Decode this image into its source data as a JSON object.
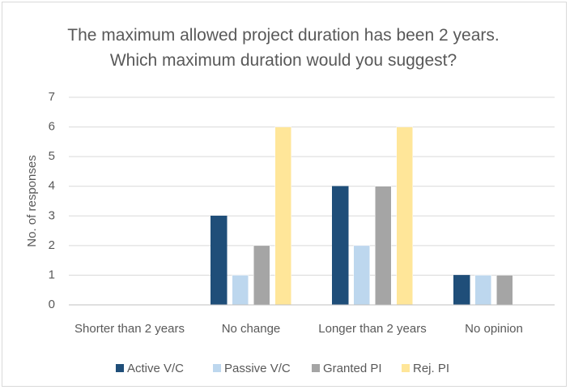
{
  "chart_data": {
    "type": "bar",
    "title": "The maximum allowed project duration has been 2 years. Which maximum duration would you suggest?",
    "ylabel": "No. of responses",
    "categories": [
      "Shorter than 2 years",
      "No change",
      "Longer than 2 years",
      "No opinion"
    ],
    "series": [
      {
        "name": "Active V/C",
        "color": "#1f4e79",
        "values": [
          0,
          3,
          4,
          1
        ]
      },
      {
        "name": "Passive V/C",
        "color": "#bdd7ee",
        "values": [
          0,
          1,
          2,
          1
        ]
      },
      {
        "name": "Granted PI",
        "color": "#a5a5a5",
        "values": [
          0,
          2,
          4,
          1
        ]
      },
      {
        "name": "Rej. PI",
        "color": "#ffe699",
        "values": [
          0,
          6,
          6,
          0
        ]
      }
    ],
    "ylim": [
      0,
      7
    ],
    "yticks": [
      0,
      1,
      2,
      3,
      4,
      5,
      6,
      7
    ],
    "grid": true,
    "legend": "bottom"
  }
}
